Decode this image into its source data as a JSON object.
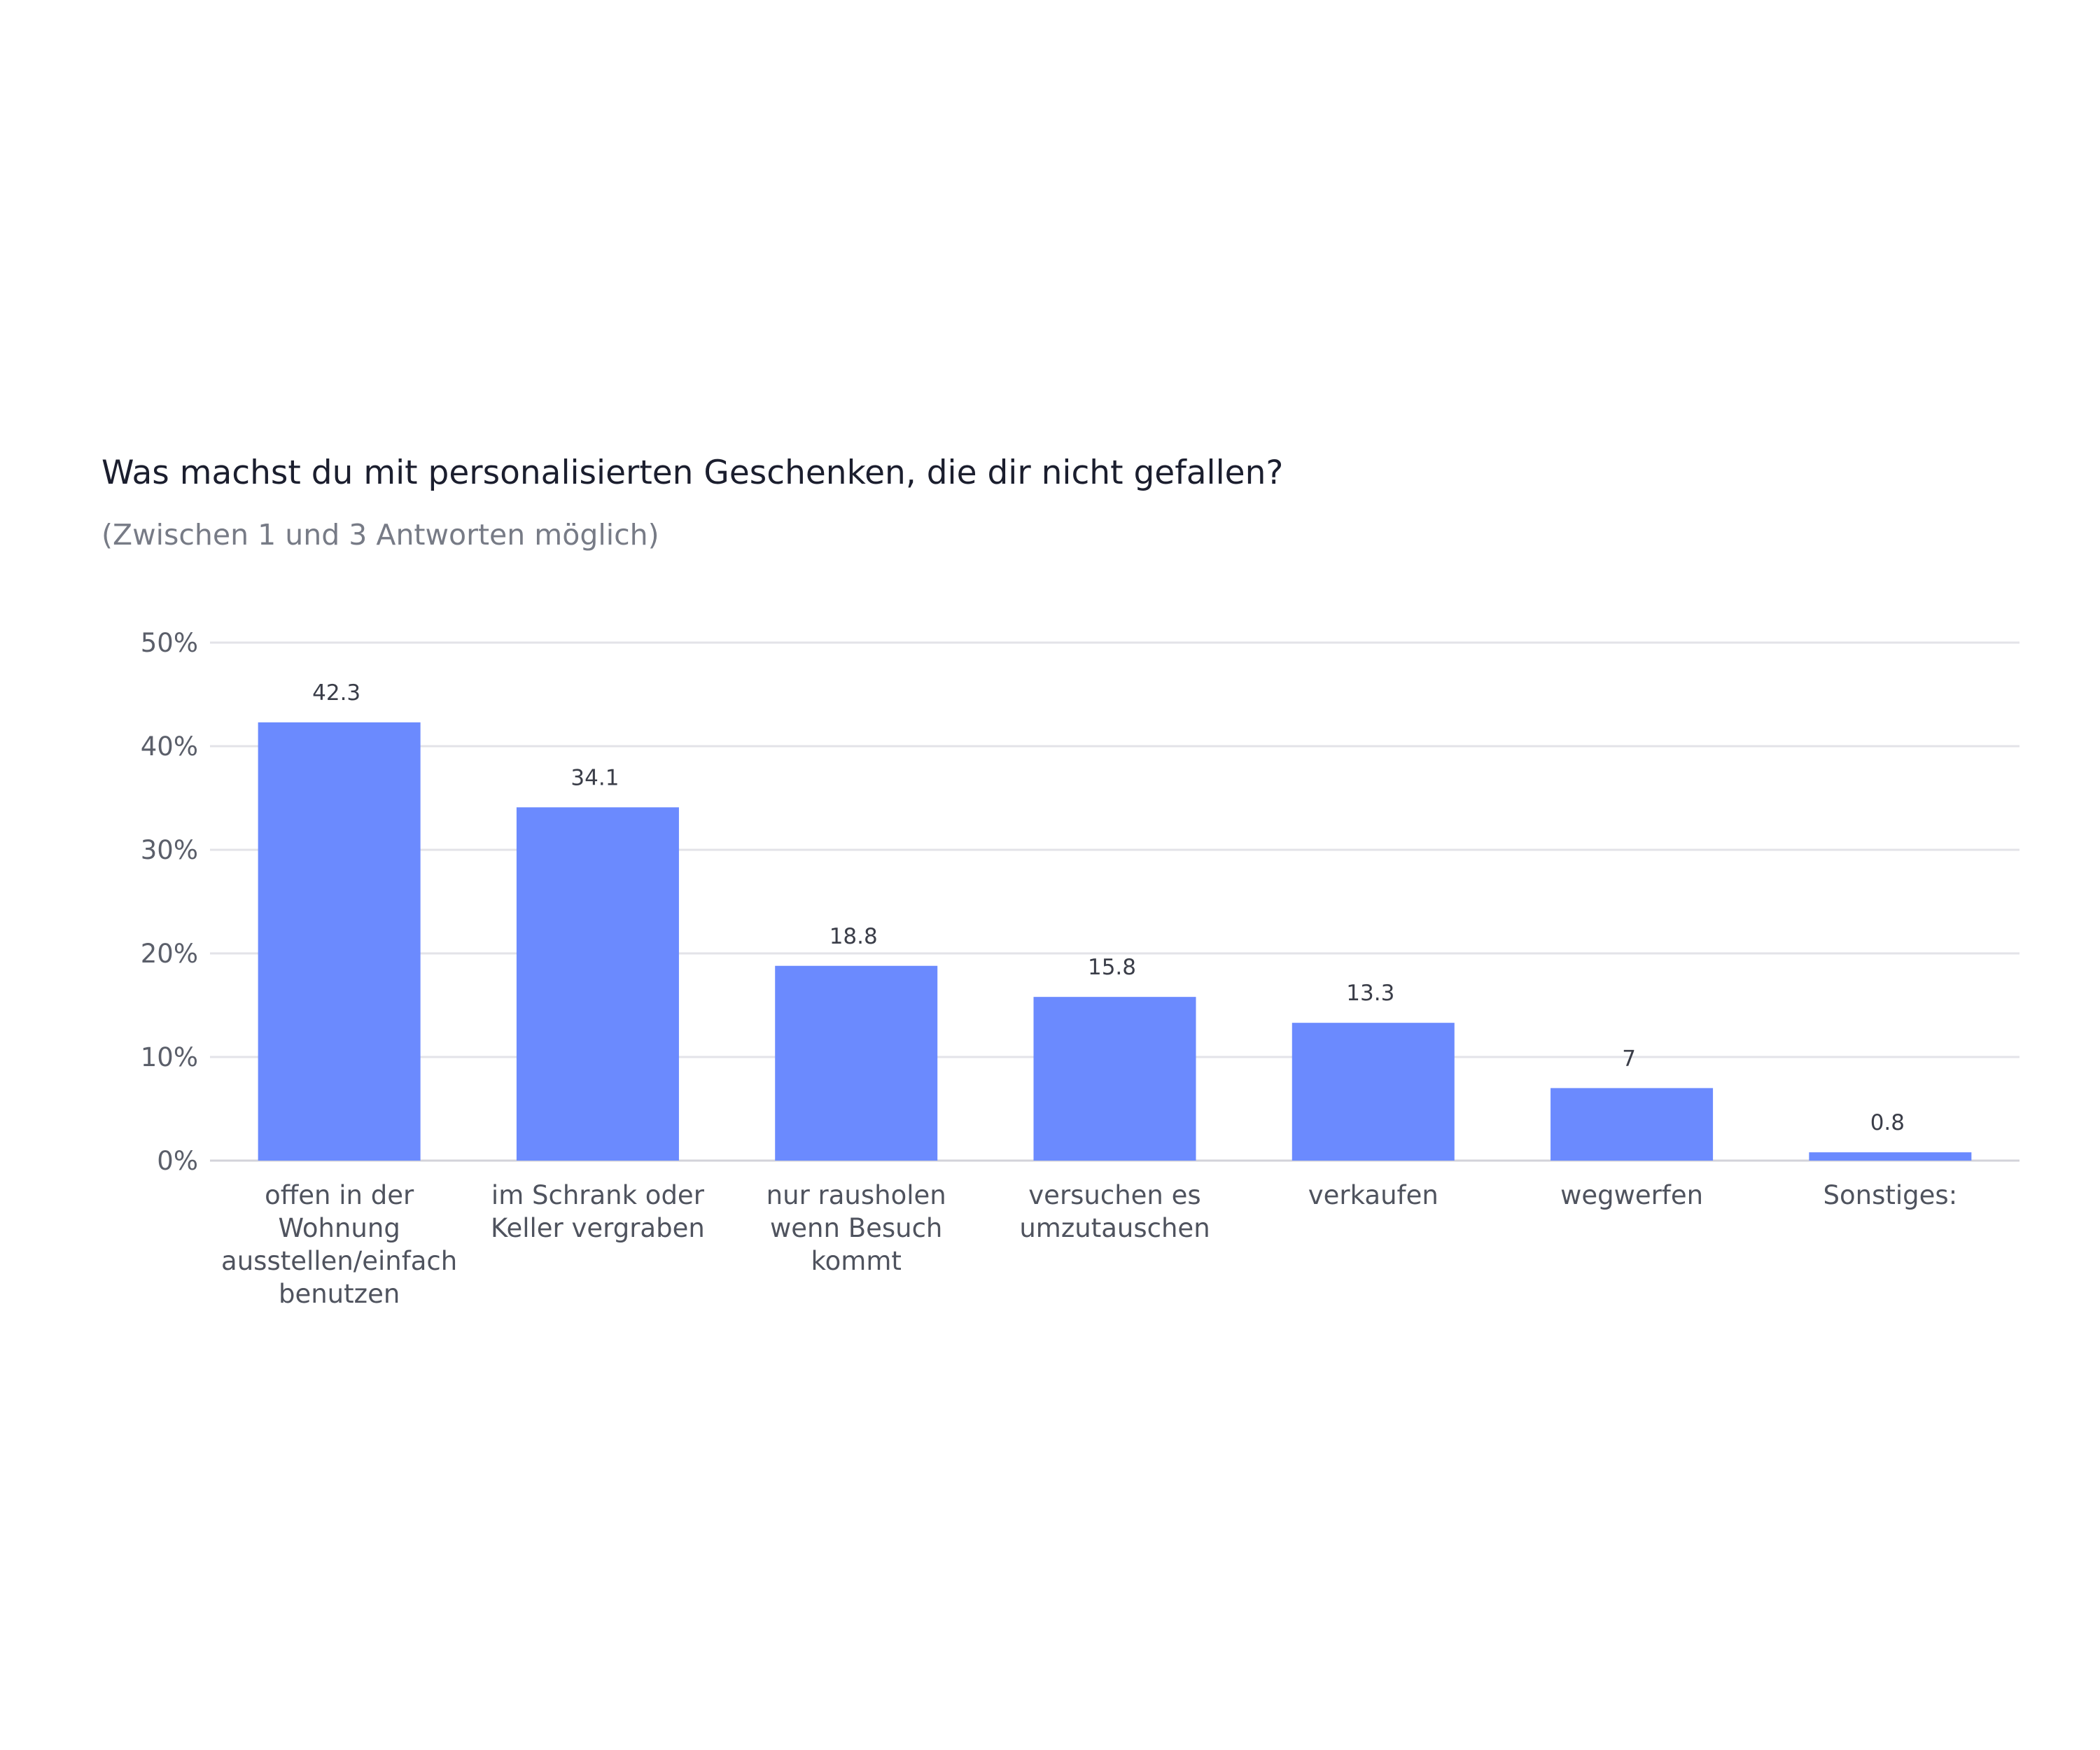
{
  "chart_data": {
    "type": "bar",
    "title": "Was machst du mit personalisierten Geschenken, die dir nicht gefallen?",
    "subtitle": "(Zwischen 1 und 3 Antworten möglich)",
    "xlabel": "",
    "ylabel": "",
    "ylim": [
      0,
      50
    ],
    "yticks": [
      0,
      10,
      20,
      30,
      40,
      50
    ],
    "ytick_labels": [
      "0%",
      "10%",
      "20%",
      "30%",
      "40%",
      "50%"
    ],
    "grid": true,
    "legend": "none",
    "bar_color": "#6b8afe",
    "categories": [
      "offen in der Wohnung ausstellen/einfach benutzen",
      "im Schrank oder Keller vergraben",
      "nur rausholen wenn Besuch kommt",
      "versuchen es umzutauschen",
      "verkaufen",
      "wegwerfen",
      "Sonstiges:"
    ],
    "category_lines": [
      [
        "offen in der",
        "Wohnung",
        "ausstellen/einfach",
        "benutzen"
      ],
      [
        "im Schrank oder",
        "Keller vergraben"
      ],
      [
        "nur rausholen",
        "wenn Besuch",
        "kommt"
      ],
      [
        "versuchen es",
        "umzutauschen"
      ],
      [
        "verkaufen"
      ],
      [
        "wegwerfen"
      ],
      [
        "Sonstiges:"
      ]
    ],
    "values": [
      42.3,
      34.1,
      18.8,
      15.8,
      13.3,
      7,
      0.8
    ],
    "value_labels": [
      "42.3",
      "34.1",
      "18.8",
      "15.8",
      "13.3",
      "7",
      "0.8"
    ]
  }
}
